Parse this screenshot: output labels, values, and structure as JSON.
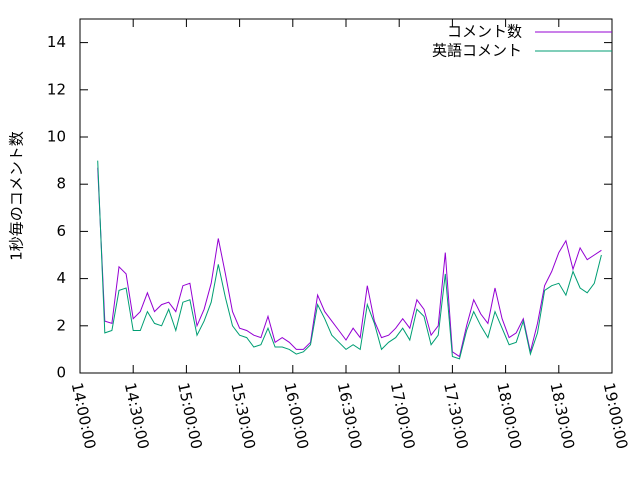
{
  "chart_data": {
    "type": "line",
    "ylabel": "1秒毎のコメント数",
    "x": [
      "14:10:00",
      "14:14:00",
      "14:18:00",
      "14:22:00",
      "14:26:00",
      "14:30:00",
      "14:34:00",
      "14:38:00",
      "14:42:00",
      "14:46:00",
      "14:50:00",
      "14:54:00",
      "14:58:00",
      "15:02:00",
      "15:06:00",
      "15:10:00",
      "15:14:00",
      "15:18:00",
      "15:22:00",
      "15:26:00",
      "15:30:00",
      "15:34:00",
      "15:38:00",
      "15:42:00",
      "15:46:00",
      "15:50:00",
      "15:54:00",
      "15:58:00",
      "16:02:00",
      "16:06:00",
      "16:10:00",
      "16:14:00",
      "16:18:00",
      "16:22:00",
      "16:26:00",
      "16:30:00",
      "16:34:00",
      "16:38:00",
      "16:42:00",
      "16:46:00",
      "16:50:00",
      "16:54:00",
      "16:58:00",
      "17:02:00",
      "17:06:00",
      "17:10:00",
      "17:14:00",
      "17:18:00",
      "17:22:00",
      "17:26:00",
      "17:30:00",
      "17:34:00",
      "17:38:00",
      "17:42:00",
      "17:46:00",
      "17:50:00",
      "17:54:00",
      "17:58:00",
      "18:02:00",
      "18:06:00",
      "18:10:00",
      "18:14:00",
      "18:18:00",
      "18:22:00",
      "18:26:00",
      "18:30:00",
      "18:34:00",
      "18:38:00",
      "18:42:00",
      "18:46:00",
      "18:50:00",
      "18:54:00"
    ],
    "series": [
      {
        "name": "コメント数",
        "color": "#9400d3",
        "values": [
          8.7,
          2.2,
          2.1,
          4.5,
          4.2,
          2.3,
          2.6,
          3.4,
          2.6,
          2.9,
          3.0,
          2.6,
          3.7,
          3.8,
          2.0,
          2.7,
          3.8,
          5.7,
          4.2,
          2.6,
          1.9,
          1.8,
          1.6,
          1.5,
          2.4,
          1.3,
          1.5,
          1.3,
          1.0,
          1.0,
          1.3,
          3.3,
          2.6,
          2.2,
          1.8,
          1.4,
          1.9,
          1.5,
          3.7,
          2.2,
          1.5,
          1.6,
          1.9,
          2.3,
          1.9,
          3.1,
          2.7,
          1.6,
          2.0,
          5.1,
          0.9,
          0.7,
          2.0,
          3.1,
          2.5,
          2.1,
          3.6,
          2.3,
          1.5,
          1.7,
          2.3,
          0.9,
          2.1,
          3.7,
          4.3,
          5.1,
          5.6,
          4.4,
          5.3,
          4.8,
          5.0,
          5.2
        ]
      },
      {
        "name": "英語コメント",
        "color": "#009e73",
        "values": [
          9.0,
          1.7,
          1.8,
          3.5,
          3.6,
          1.8,
          1.8,
          2.6,
          2.1,
          2.0,
          2.7,
          1.8,
          3.0,
          3.1,
          1.6,
          2.2,
          3.0,
          4.6,
          3.2,
          2.0,
          1.6,
          1.5,
          1.1,
          1.2,
          1.9,
          1.1,
          1.1,
          1.0,
          0.8,
          0.9,
          1.2,
          2.9,
          2.3,
          1.6,
          1.3,
          1.0,
          1.2,
          1.0,
          2.9,
          2.1,
          1.0,
          1.3,
          1.5,
          1.9,
          1.4,
          2.7,
          2.4,
          1.2,
          1.6,
          4.2,
          0.7,
          0.6,
          1.8,
          2.6,
          2.0,
          1.5,
          2.6,
          1.9,
          1.2,
          1.3,
          2.2,
          0.8,
          1.7,
          3.5,
          3.7,
          3.8,
          3.3,
          4.3,
          3.6,
          3.4,
          3.8,
          5.0
        ]
      }
    ],
    "xlim": [
      "14:00:00",
      "19:00:00"
    ],
    "xticks": [
      "14:00:00",
      "14:30:00",
      "15:00:00",
      "15:30:00",
      "16:00:00",
      "16:30:00",
      "17:00:00",
      "17:30:00",
      "18:00:00",
      "18:30:00",
      "19:00:00"
    ],
    "ylim": [
      0,
      15
    ],
    "yticks": [
      0,
      2,
      4,
      6,
      8,
      10,
      12,
      14
    ],
    "legend": "top-right"
  }
}
